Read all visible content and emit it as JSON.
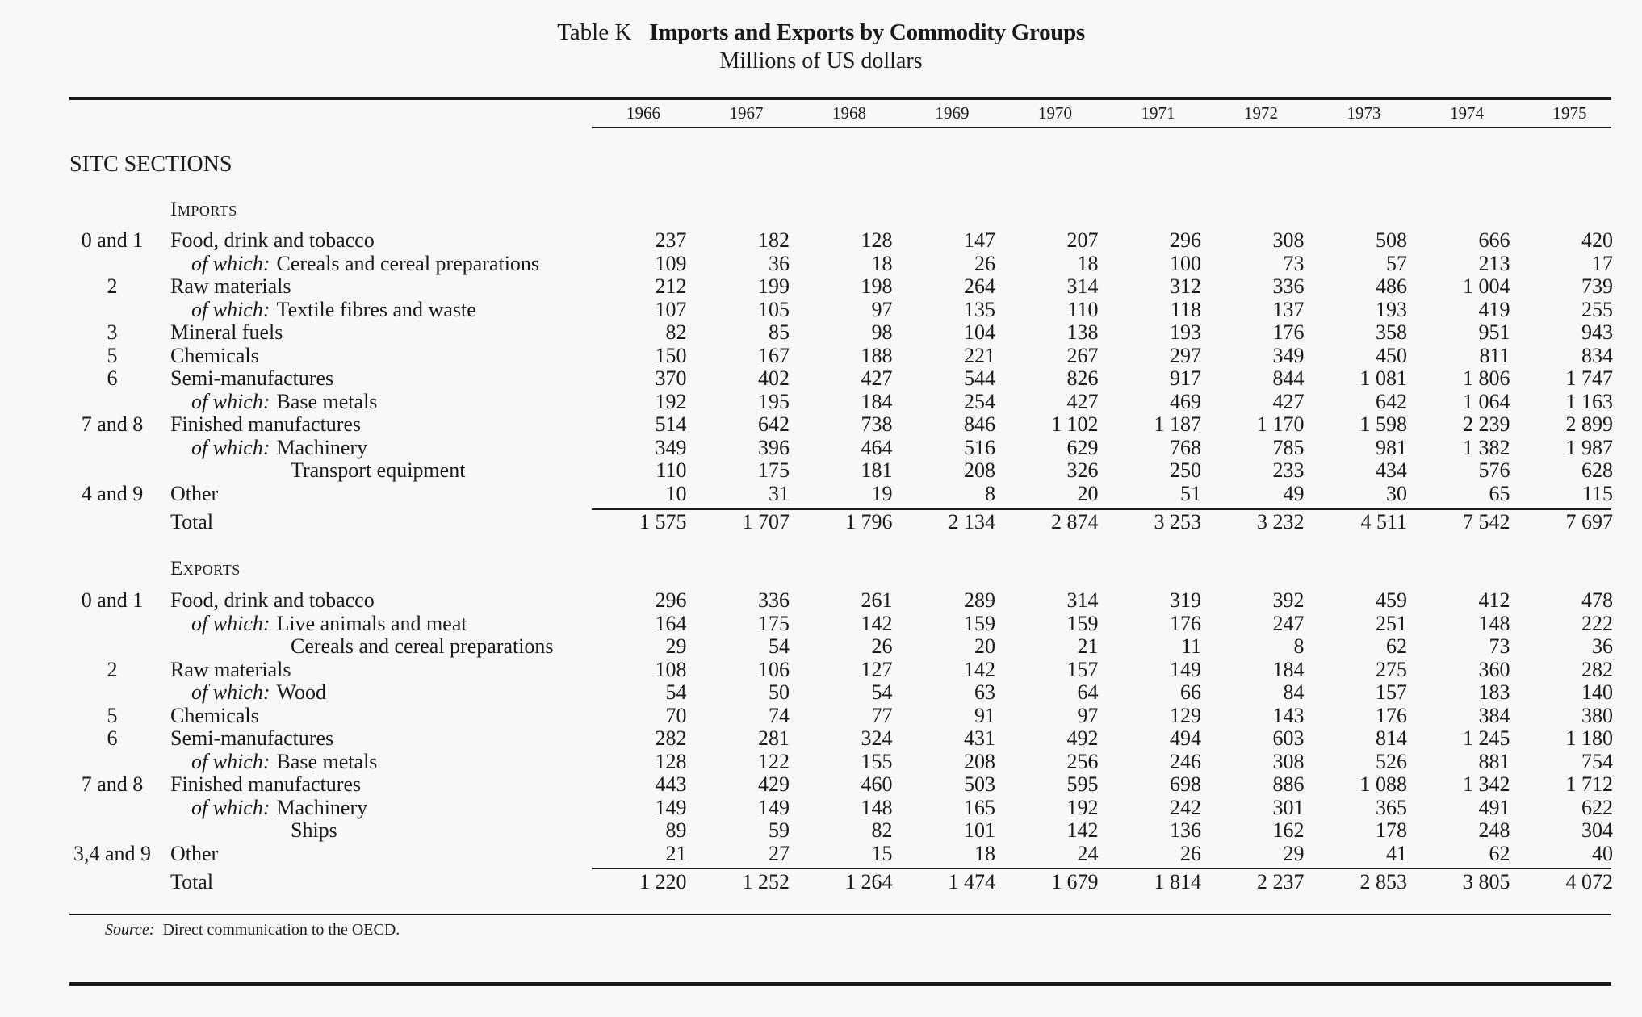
{
  "title": {
    "label": "Table K",
    "main": "Imports and Exports by Commodity Groups",
    "subtitle": "Millions of US dollars"
  },
  "years": [
    "1966",
    "1967",
    "1968",
    "1969",
    "1970",
    "1971",
    "1972",
    "1973",
    "1974",
    "1975"
  ],
  "sitc_label": "SITC SECTIONS",
  "imports": {
    "heading": "Imports",
    "rows": [
      {
        "code": "0 and 1",
        "prefix": "",
        "label": "Food, drink and tobacco",
        "values": [
          "237",
          "182",
          "128",
          "147",
          "207",
          "296",
          "308",
          "508",
          "666",
          "420"
        ]
      },
      {
        "code": "",
        "prefix": "of which:",
        "label": "Cereals and cereal preparations",
        "values": [
          "109",
          "36",
          "18",
          "26",
          "18",
          "100",
          "73",
          "57",
          "213",
          "17"
        ]
      },
      {
        "code": "2",
        "prefix": "",
        "label": "Raw materials",
        "values": [
          "212",
          "199",
          "198",
          "264",
          "314",
          "312",
          "336",
          "486",
          "1 004",
          "739"
        ]
      },
      {
        "code": "",
        "prefix": "of which:",
        "label": "Textile fibres and waste",
        "values": [
          "107",
          "105",
          "97",
          "135",
          "110",
          "118",
          "137",
          "193",
          "419",
          "255"
        ]
      },
      {
        "code": "3",
        "prefix": "",
        "label": "Mineral fuels",
        "values": [
          "82",
          "85",
          "98",
          "104",
          "138",
          "193",
          "176",
          "358",
          "951",
          "943"
        ]
      },
      {
        "code": "5",
        "prefix": "",
        "label": "Chemicals",
        "values": [
          "150",
          "167",
          "188",
          "221",
          "267",
          "297",
          "349",
          "450",
          "811",
          "834"
        ]
      },
      {
        "code": "6",
        "prefix": "",
        "label": "Semi-manufactures",
        "values": [
          "370",
          "402",
          "427",
          "544",
          "826",
          "917",
          "844",
          "1 081",
          "1 806",
          "1 747"
        ]
      },
      {
        "code": "",
        "prefix": "of which:",
        "label": "Base metals",
        "values": [
          "192",
          "195",
          "184",
          "254",
          "427",
          "469",
          "427",
          "642",
          "1 064",
          "1 163"
        ]
      },
      {
        "code": "7 and 8",
        "prefix": "",
        "label": "Finished manufactures",
        "values": [
          "514",
          "642",
          "738",
          "846",
          "1 102",
          "1 187",
          "1 170",
          "1 598",
          "2 239",
          "2 899"
        ]
      },
      {
        "code": "",
        "prefix": "of which:",
        "label": "Machinery",
        "values": [
          "349",
          "396",
          "464",
          "516",
          "629",
          "768",
          "785",
          "981",
          "1 382",
          "1 987"
        ]
      },
      {
        "code": "",
        "prefix": "",
        "label": "Transport equipment",
        "values": [
          "110",
          "175",
          "181",
          "208",
          "326",
          "250",
          "233",
          "434",
          "576",
          "628"
        ]
      },
      {
        "code": "4 and 9",
        "prefix": "",
        "label": "Other",
        "values": [
          "10",
          "31",
          "19",
          "8",
          "20",
          "51",
          "49",
          "30",
          "65",
          "115"
        ]
      }
    ],
    "total": {
      "label": "Total",
      "values": [
        "1 575",
        "1 707",
        "1 796",
        "2 134",
        "2 874",
        "3 253",
        "3 232",
        "4 511",
        "7 542",
        "7 697"
      ]
    }
  },
  "exports": {
    "heading": "Exports",
    "rows": [
      {
        "code": "0 and 1",
        "prefix": "",
        "label": "Food, drink and tobacco",
        "values": [
          "296",
          "336",
          "261",
          "289",
          "314",
          "319",
          "392",
          "459",
          "412",
          "478"
        ]
      },
      {
        "code": "",
        "prefix": "of which:",
        "label": "Live animals and meat",
        "values": [
          "164",
          "175",
          "142",
          "159",
          "159",
          "176",
          "247",
          "251",
          "148",
          "222"
        ]
      },
      {
        "code": "",
        "prefix": "",
        "label": "Cereals and cereal preparations",
        "values": [
          "29",
          "54",
          "26",
          "20",
          "21",
          "11",
          "8",
          "62",
          "73",
          "36"
        ]
      },
      {
        "code": "2",
        "prefix": "",
        "label": "Raw materials",
        "values": [
          "108",
          "106",
          "127",
          "142",
          "157",
          "149",
          "184",
          "275",
          "360",
          "282"
        ]
      },
      {
        "code": "",
        "prefix": "of which:",
        "label": "Wood",
        "values": [
          "54",
          "50",
          "54",
          "63",
          "64",
          "66",
          "84",
          "157",
          "183",
          "140"
        ]
      },
      {
        "code": "5",
        "prefix": "",
        "label": "Chemicals",
        "values": [
          "70",
          "74",
          "77",
          "91",
          "97",
          "129",
          "143",
          "176",
          "384",
          "380"
        ]
      },
      {
        "code": "6",
        "prefix": "",
        "label": "Semi-manufactures",
        "values": [
          "282",
          "281",
          "324",
          "431",
          "492",
          "494",
          "603",
          "814",
          "1 245",
          "1 180"
        ]
      },
      {
        "code": "",
        "prefix": "of which:",
        "label": "Base metals",
        "values": [
          "128",
          "122",
          "155",
          "208",
          "256",
          "246",
          "308",
          "526",
          "881",
          "754"
        ]
      },
      {
        "code": "7 and 8",
        "prefix": "",
        "label": "Finished manufactures",
        "values": [
          "443",
          "429",
          "460",
          "503",
          "595",
          "698",
          "886",
          "1 088",
          "1 342",
          "1 712"
        ]
      },
      {
        "code": "",
        "prefix": "of which:",
        "label": "Machinery",
        "values": [
          "149",
          "149",
          "148",
          "165",
          "192",
          "242",
          "301",
          "365",
          "491",
          "622"
        ]
      },
      {
        "code": "",
        "prefix": "",
        "label": "Ships",
        "values": [
          "89",
          "59",
          "82",
          "101",
          "142",
          "136",
          "162",
          "178",
          "248",
          "304"
        ]
      },
      {
        "code": "3,4 and 9",
        "prefix": "",
        "label": "Other",
        "values": [
          "21",
          "27",
          "15",
          "18",
          "24",
          "26",
          "29",
          "41",
          "62",
          "40"
        ]
      }
    ],
    "total": {
      "label": "Total",
      "values": [
        "1 220",
        "1 252",
        "1 264",
        "1 474",
        "1 679",
        "1 814",
        "2 237",
        "2 853",
        "3 805",
        "4 072"
      ]
    }
  },
  "source": {
    "key": "Source:",
    "text": "Direct communication to the OECD."
  }
}
